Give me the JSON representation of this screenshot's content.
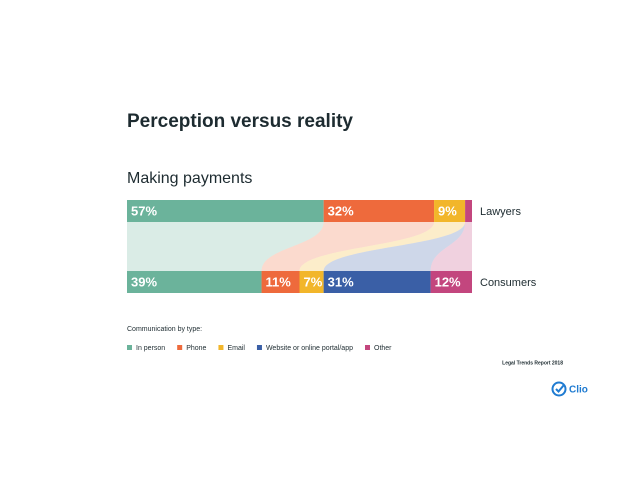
{
  "chart_data": {
    "type": "stacked-bar-flow",
    "title": "Perception versus reality",
    "subtitle": "Making payments",
    "categories": [
      "Lawyers",
      "Consumers"
    ],
    "xlim": [
      0,
      100
    ],
    "series": [
      {
        "name": "In person",
        "color": "#6bb39b",
        "values": [
          57,
          39
        ],
        "value_labels": [
          "57%",
          "39%"
        ]
      },
      {
        "name": "Phone",
        "color": "#ee6a3c",
        "values": [
          32,
          11
        ],
        "value_labels": [
          "32%",
          "11%"
        ]
      },
      {
        "name": "Email",
        "color": "#f2b62a",
        "values": [
          9,
          7
        ],
        "value_labels": [
          "9%",
          "7%"
        ]
      },
      {
        "name": "Website or online portal/app",
        "color": "#3a5fa6",
        "values": [
          0,
          31
        ],
        "value_labels": [
          null,
          "31%"
        ]
      },
      {
        "name": "Other",
        "color": "#c3467e",
        "values": [
          2,
          12
        ],
        "value_labels": [
          null,
          "12%"
        ]
      }
    ],
    "legend_title": "Communication by type:",
    "source": "Legal Trends Report 2018",
    "logo": "Clio"
  }
}
